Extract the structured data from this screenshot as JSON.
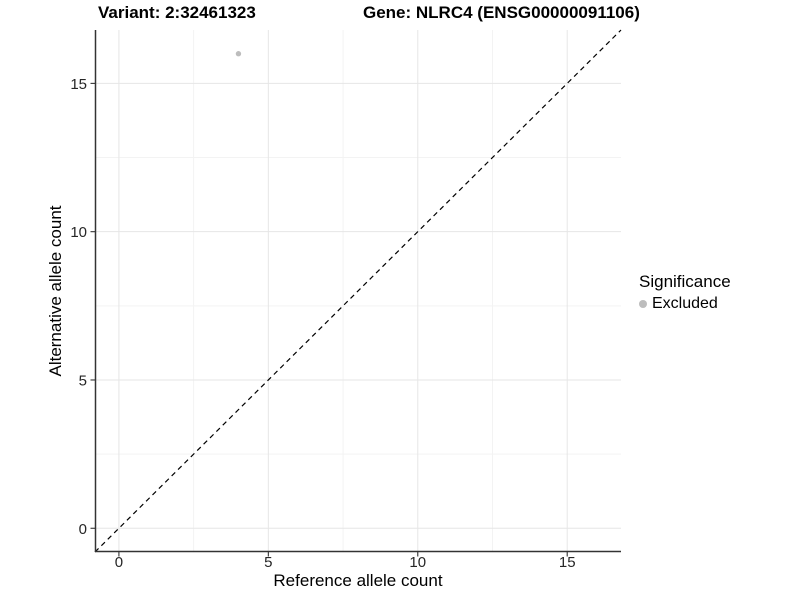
{
  "chart_data": {
    "type": "scatter",
    "title_left": "Variant: 2:32461323",
    "title_right": "Gene: NLRC4 (ENSG00000091106)",
    "xlabel": "Reference allele count",
    "ylabel": "Alternative allele count",
    "xlim": [
      -0.8,
      16.8
    ],
    "ylim": [
      -0.8,
      16.8
    ],
    "x_ticks": [
      0,
      5,
      10,
      15
    ],
    "y_ticks": [
      0,
      5,
      10,
      15
    ],
    "x_minor_ticks": [
      2.5,
      7.5,
      12.5
    ],
    "y_minor_ticks": [
      2.5,
      7.5,
      12.5
    ],
    "grid": true,
    "reference_line": {
      "type": "identity",
      "slope": 1,
      "intercept": 0,
      "style": "dashed",
      "color": "#000000"
    },
    "series": [
      {
        "name": "Excluded",
        "color": "#bdbdbd",
        "points": [
          {
            "x": 4,
            "y": 16
          }
        ]
      }
    ],
    "legend": {
      "title": "Significance",
      "position": "right",
      "entries": [
        {
          "label": "Excluded",
          "color": "#bdbdbd"
        }
      ]
    },
    "colors": {
      "grid_major": "#e6e6e6",
      "grid_minor": "#f3f3f3",
      "axis": "#333333",
      "tick_text": "#262626",
      "point": "#bdbdbd"
    }
  }
}
